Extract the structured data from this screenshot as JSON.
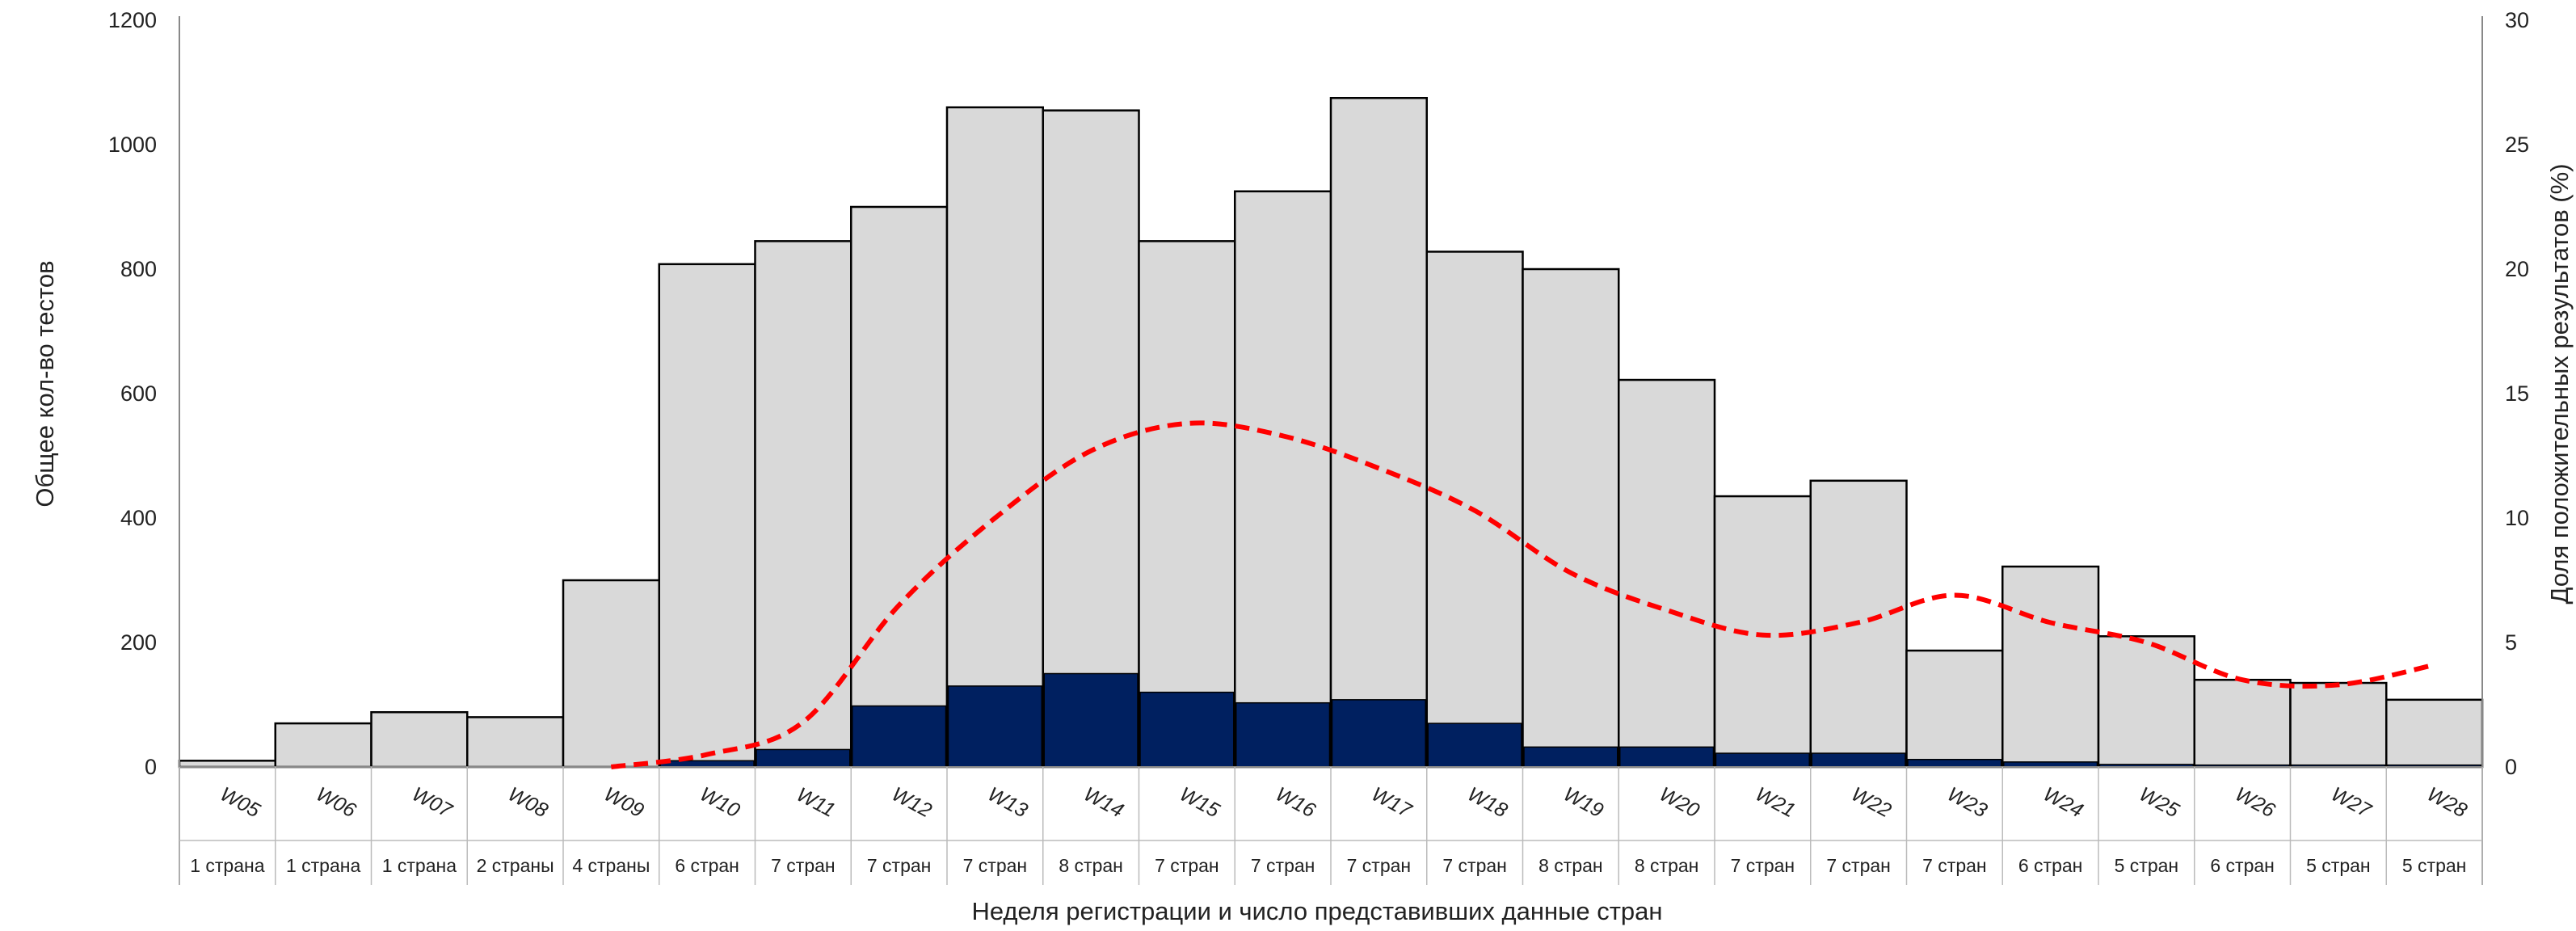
{
  "chart_data": {
    "type": "bar",
    "categories": [
      "W05",
      "W06",
      "W07",
      "W08",
      "W09",
      "W10",
      "W11",
      "W12",
      "W13",
      "W14",
      "W15",
      "W16",
      "W17",
      "W18",
      "W19",
      "W20",
      "W21",
      "W22",
      "W23",
      "W24",
      "W25",
      "W26",
      "W27",
      "W28"
    ],
    "countries": [
      "1 страна",
      "1 страна",
      "1 страна",
      "2 страны",
      "4 страны",
      "6 стран",
      "7 стран",
      "7 стран",
      "7 стран",
      "8 стран",
      "7 стран",
      "7 стран",
      "7 стран",
      "7 стран",
      "8 стран",
      "8 стран",
      "7 стран",
      "7 стран",
      "7 стран",
      "6 стран",
      "5 стран",
      "6 стран",
      "5 стран",
      "5 стран"
    ],
    "series": [
      {
        "values": [
          10,
          70,
          88,
          80,
          300,
          808,
          845,
          900,
          1060,
          1055,
          845,
          925,
          1075,
          828,
          800,
          622,
          435,
          460,
          187,
          322,
          210,
          140,
          135,
          108
        ]
      },
      {
        "values": [
          0,
          0,
          0,
          0,
          0,
          10,
          28,
          98,
          130,
          150,
          120,
          103,
          108,
          70,
          32,
          32,
          22,
          22,
          12,
          8,
          4,
          3,
          3,
          3
        ]
      },
      {
        "axis": "right",
        "values": [
          null,
          null,
          null,
          null,
          0,
          0.5,
          1.8,
          6.5,
          10,
          12.7,
          13.8,
          13.3,
          12,
          10.3,
          7.8,
          6.3,
          5.3,
          5.8,
          6.9,
          5.8,
          5,
          3.5,
          3.3,
          4.1
        ]
      }
    ],
    "xlabel": "Неделя регистрации и число представивших данные стран",
    "ylabel": "Общее кол-во тестов",
    "y2label": "Доля положительных результатов (%)",
    "ylim": [
      0,
      1200
    ],
    "y2lim": [
      0,
      30
    ],
    "yticks": [
      "0",
      "200",
      "400",
      "600",
      "800",
      "1000",
      "1200"
    ],
    "y2ticks": [
      "0",
      "5",
      "10",
      "15",
      "20",
      "25",
      "30"
    ],
    "colors": {
      "total": "#d9d9d9",
      "positive": "#002060",
      "share": "#ff0000",
      "outline": "#000000"
    },
    "grid": false,
    "legend": "none"
  }
}
